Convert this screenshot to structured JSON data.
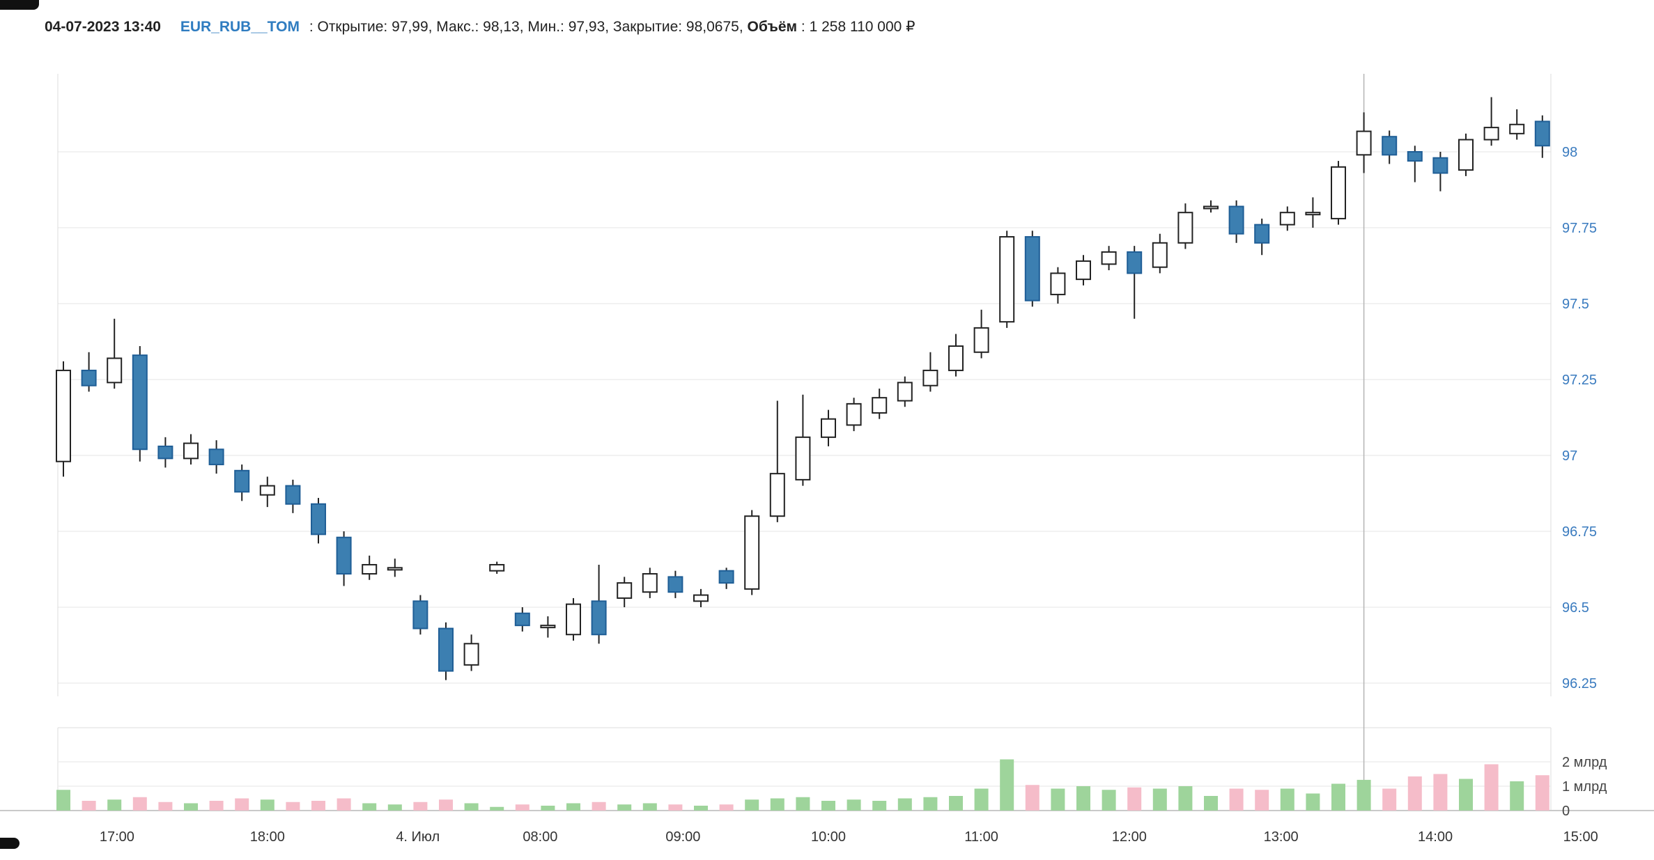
{
  "header": {
    "timestamp": "04-07-2023 13:40",
    "symbol": "EUR_RUB__TOM",
    "details": ": Открытие: 97,99, Макс.: 98,13, Мин.: 97,93, Закрытие: 98,0675, ",
    "volume_label": "Объём",
    "volume_value": ": 1 258 110 000 ₽"
  },
  "colors": {
    "up_fill": "#ffffff",
    "up_border": "#222222",
    "down_fill": "#3c7fb1",
    "down_border": "#1f5e96",
    "wick": "#222222",
    "grid": "#ededed",
    "pane_border": "#dddddd",
    "bottom_axis": "#c9c9c9",
    "price_label": "#3a7bbf",
    "volume_label": "#444444",
    "time_label": "#333333",
    "vol_up": "#9ed49b",
    "vol_down": "#f5bcc9",
    "crosshair": "#b5b5b5",
    "symbol_link": "#2f7cc0"
  },
  "chart_data": {
    "type": "candlestick",
    "title": "EUR_RUB__TOM 10-minute candles with volume",
    "legend_position": "none",
    "grid": "horizontal",
    "price_axis": {
      "range": [
        96.22,
        98.27
      ],
      "ticks": [
        {
          "value": 98,
          "label": "98"
        },
        {
          "value": 97.75,
          "label": "97.75"
        },
        {
          "value": 97.5,
          "label": "97.5"
        },
        {
          "value": 97.25,
          "label": "97.25"
        },
        {
          "value": 97,
          "label": "97"
        },
        {
          "value": 96.75,
          "label": "96.75"
        },
        {
          "value": 96.5,
          "label": "96.5"
        },
        {
          "value": 96.25,
          "label": "96.25"
        }
      ]
    },
    "volume_axis": {
      "unit": "млрд ₽",
      "ticks": [
        {
          "value": 2,
          "label": "2 млрд"
        },
        {
          "value": 1,
          "label": "1 млрд"
        },
        {
          "value": 0,
          "label": "0"
        }
      ]
    },
    "time_axis": {
      "labels": [
        {
          "label": "17:00",
          "index": 2.1
        },
        {
          "label": "18:00",
          "index": 8.0
        },
        {
          "label": "4. Июл",
          "index": 13.9
        },
        {
          "label": "08:00",
          "index": 18.7
        },
        {
          "label": "09:00",
          "index": 24.3
        },
        {
          "label": "10:00",
          "index": 30.0
        },
        {
          "label": "11:00",
          "index": 36.0
        },
        {
          "label": "12:00",
          "index": 41.8
        },
        {
          "label": "13:00",
          "index": 47.75
        },
        {
          "label": "14:00",
          "index": 53.8
        },
        {
          "label": "15:00",
          "index": 59.5
        }
      ]
    },
    "crosshair_index": 51,
    "candles_format": [
      "open",
      "high",
      "low",
      "close",
      "volume_bln",
      "volume_color"
    ],
    "candles": [
      [
        96.98,
        97.31,
        96.93,
        97.28,
        0.85,
        "g"
      ],
      [
        97.28,
        97.34,
        97.21,
        97.23,
        0.4,
        "p"
      ],
      [
        97.24,
        97.45,
        97.22,
        97.32,
        0.45,
        "g"
      ],
      [
        97.33,
        97.36,
        96.98,
        97.02,
        0.55,
        "p"
      ],
      [
        97.03,
        97.06,
        96.96,
        96.99,
        0.35,
        "p"
      ],
      [
        96.99,
        97.07,
        96.97,
        97.04,
        0.3,
        "g"
      ],
      [
        97.02,
        97.05,
        96.94,
        96.97,
        0.4,
        "p"
      ],
      [
        96.95,
        96.97,
        96.85,
        96.88,
        0.5,
        "p"
      ],
      [
        96.87,
        96.93,
        96.83,
        96.9,
        0.45,
        "g"
      ],
      [
        96.9,
        96.92,
        96.81,
        96.84,
        0.35,
        "p"
      ],
      [
        96.84,
        96.86,
        96.71,
        96.74,
        0.4,
        "p"
      ],
      [
        96.73,
        96.75,
        96.57,
        96.61,
        0.5,
        "p"
      ],
      [
        96.61,
        96.67,
        96.59,
        96.64,
        0.3,
        "g"
      ],
      [
        96.63,
        96.66,
        96.6,
        96.63,
        0.25,
        "g"
      ],
      [
        96.52,
        96.54,
        96.41,
        96.43,
        0.35,
        "p"
      ],
      [
        96.43,
        96.45,
        96.26,
        96.29,
        0.45,
        "p"
      ],
      [
        96.31,
        96.41,
        96.29,
        96.38,
        0.3,
        "g"
      ],
      [
        96.62,
        96.65,
        96.61,
        96.64,
        0.15,
        "g"
      ],
      [
        96.48,
        96.5,
        96.42,
        96.44,
        0.25,
        "p"
      ],
      [
        96.44,
        96.47,
        96.4,
        96.44,
        0.2,
        "g"
      ],
      [
        96.41,
        96.53,
        96.39,
        96.51,
        0.3,
        "g"
      ],
      [
        96.52,
        96.64,
        96.38,
        96.41,
        0.35,
        "p"
      ],
      [
        96.53,
        96.6,
        96.5,
        96.58,
        0.25,
        "g"
      ],
      [
        96.55,
        96.63,
        96.53,
        96.61,
        0.3,
        "g"
      ],
      [
        96.6,
        96.62,
        96.53,
        96.55,
        0.25,
        "p"
      ],
      [
        96.52,
        96.56,
        96.5,
        96.54,
        0.2,
        "g"
      ],
      [
        96.62,
        96.63,
        96.56,
        96.58,
        0.25,
        "p"
      ],
      [
        96.56,
        96.82,
        96.54,
        96.8,
        0.45,
        "g"
      ],
      [
        96.8,
        97.18,
        96.78,
        96.94,
        0.5,
        "g"
      ],
      [
        96.92,
        97.2,
        96.9,
        97.06,
        0.55,
        "g"
      ],
      [
        97.06,
        97.15,
        97.03,
        97.12,
        0.4,
        "g"
      ],
      [
        97.1,
        97.19,
        97.08,
        97.17,
        0.45,
        "g"
      ],
      [
        97.14,
        97.22,
        97.12,
        97.19,
        0.4,
        "g"
      ],
      [
        97.18,
        97.26,
        97.16,
        97.24,
        0.5,
        "g"
      ],
      [
        97.23,
        97.34,
        97.21,
        97.28,
        0.55,
        "g"
      ],
      [
        97.28,
        97.4,
        97.26,
        97.36,
        0.6,
        "g"
      ],
      [
        97.34,
        97.48,
        97.32,
        97.42,
        0.9,
        "g"
      ],
      [
        97.44,
        97.74,
        97.42,
        97.72,
        2.1,
        "g"
      ],
      [
        97.72,
        97.74,
        97.49,
        97.51,
        1.05,
        "p"
      ],
      [
        97.53,
        97.62,
        97.5,
        97.6,
        0.9,
        "g"
      ],
      [
        97.58,
        97.66,
        97.56,
        97.64,
        1.0,
        "g"
      ],
      [
        97.63,
        97.69,
        97.61,
        97.67,
        0.85,
        "g"
      ],
      [
        97.67,
        97.69,
        97.45,
        97.6,
        0.95,
        "p"
      ],
      [
        97.62,
        97.73,
        97.6,
        97.7,
        0.9,
        "g"
      ],
      [
        97.7,
        97.83,
        97.68,
        97.8,
        1.0,
        "g"
      ],
      [
        97.82,
        97.84,
        97.8,
        97.82,
        0.6,
        "g"
      ],
      [
        97.82,
        97.84,
        97.7,
        97.73,
        0.9,
        "p"
      ],
      [
        97.76,
        97.78,
        97.66,
        97.7,
        0.85,
        "p"
      ],
      [
        97.76,
        97.82,
        97.74,
        97.8,
        0.9,
        "g"
      ],
      [
        97.8,
        97.85,
        97.75,
        97.8,
        0.7,
        "g"
      ],
      [
        97.78,
        97.97,
        97.76,
        97.95,
        1.1,
        "g"
      ],
      [
        97.99,
        98.13,
        97.93,
        98.0675,
        1.26,
        "g"
      ],
      [
        98.05,
        98.07,
        97.96,
        97.99,
        0.9,
        "p"
      ],
      [
        98.0,
        98.02,
        97.9,
        97.97,
        1.4,
        "p"
      ],
      [
        97.98,
        98.0,
        97.87,
        97.93,
        1.5,
        "p"
      ],
      [
        97.94,
        98.06,
        97.92,
        98.04,
        1.3,
        "g"
      ],
      [
        98.04,
        98.18,
        98.02,
        98.08,
        1.9,
        "p"
      ],
      [
        98.06,
        98.14,
        98.04,
        98.09,
        1.2,
        "g"
      ],
      [
        98.1,
        98.12,
        97.98,
        98.02,
        1.45,
        "p"
      ]
    ]
  }
}
